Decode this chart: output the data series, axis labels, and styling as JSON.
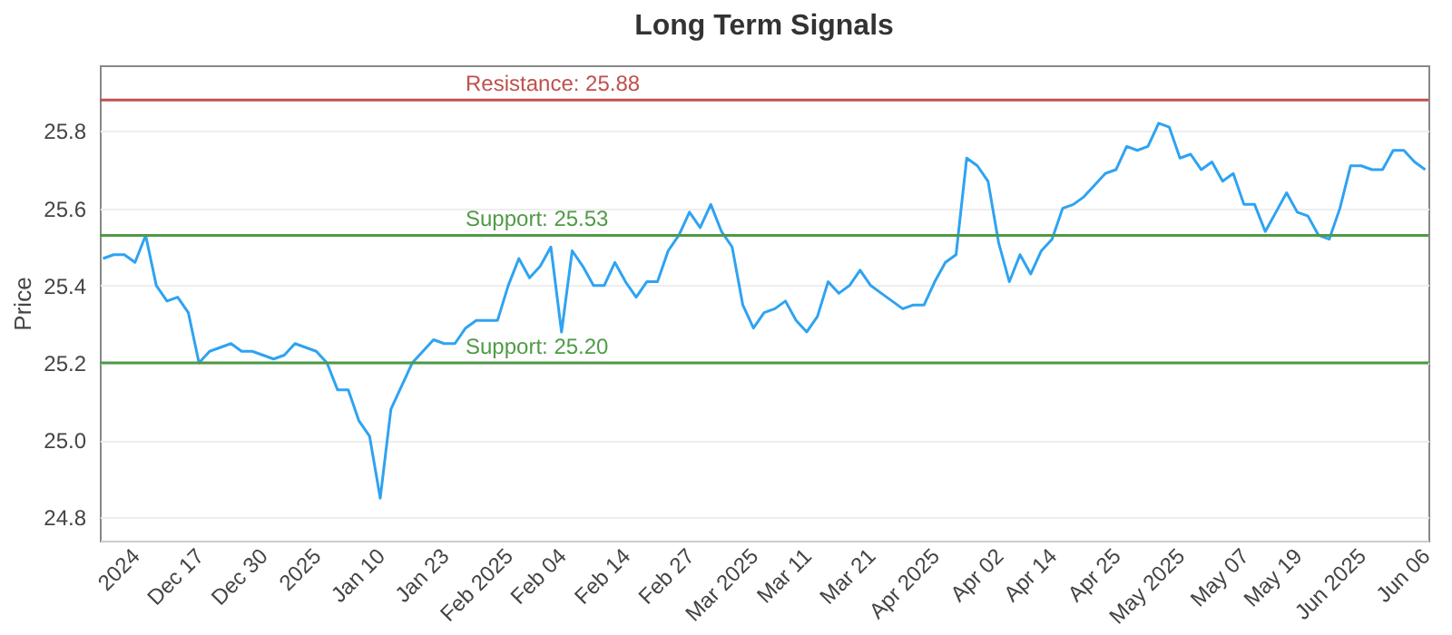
{
  "chart_data": {
    "type": "line",
    "title": "Long Term Signals",
    "ylabel": "Price",
    "categories": [
      null,
      null,
      null,
      "2024",
      null,
      null,
      null,
      null,
      null,
      "Dec 17",
      null,
      null,
      null,
      null,
      null,
      "Dec 30",
      null,
      null,
      null,
      null,
      "2025",
      null,
      null,
      null,
      null,
      null,
      "Jan 10",
      null,
      null,
      null,
      null,
      null,
      "Jan 23",
      null,
      null,
      null,
      null,
      null,
      "Feb 2025",
      null,
      null,
      null,
      null,
      "Feb 04",
      null,
      null,
      null,
      null,
      null,
      "Feb 14",
      null,
      null,
      null,
      null,
      null,
      "Feb 27",
      null,
      null,
      null,
      null,
      null,
      "Mar 2025",
      null,
      null,
      null,
      null,
      "Mar 11",
      null,
      null,
      null,
      null,
      null,
      "Mar 21",
      null,
      null,
      null,
      null,
      null,
      "Apr 2025",
      null,
      null,
      null,
      null,
      null,
      "Apr 02",
      null,
      null,
      null,
      null,
      "Apr 14",
      null,
      null,
      null,
      null,
      null,
      "Apr 25",
      null,
      null,
      null,
      null,
      null,
      "May 2025",
      null,
      null,
      null,
      null,
      null,
      "May 07",
      null,
      null,
      null,
      null,
      "May 19",
      null,
      null,
      null,
      null,
      null,
      "Jun 2025",
      null,
      null,
      null,
      null,
      null,
      "Jun 06"
    ],
    "series": [
      {
        "color": "#2ea3f2",
        "values": [
          25.47,
          25.48,
          25.48,
          25.46,
          25.53,
          25.4,
          25.36,
          25.37,
          25.33,
          25.2,
          25.23,
          25.24,
          25.25,
          25.23,
          25.23,
          25.22,
          25.21,
          25.22,
          25.25,
          25.24,
          25.23,
          25.2,
          25.13,
          25.13,
          25.05,
          25.01,
          24.85,
          25.08,
          25.14,
          25.2,
          25.23,
          25.26,
          25.25,
          25.25,
          25.29,
          25.31,
          25.31,
          25.31,
          25.4,
          25.47,
          25.42,
          25.45,
          25.5,
          25.28,
          25.49,
          25.45,
          25.4,
          25.4,
          25.46,
          25.41,
          25.37,
          25.41,
          25.41,
          25.49,
          25.53,
          25.59,
          25.55,
          25.61,
          25.54,
          25.5,
          25.35,
          25.29,
          25.33,
          25.34,
          25.36,
          25.31,
          25.28,
          25.32,
          25.41,
          25.38,
          25.4,
          25.44,
          25.4,
          25.38,
          25.36,
          25.34,
          25.35,
          25.35,
          25.41,
          25.46,
          25.48,
          25.73,
          25.71,
          25.67,
          25.51,
          25.41,
          25.48,
          25.43,
          25.49,
          25.52,
          25.6,
          25.61,
          25.63,
          25.66,
          25.69,
          25.7,
          25.76,
          25.75,
          25.76,
          25.82,
          25.81,
          25.73,
          25.74,
          25.7,
          25.72,
          25.67,
          25.69,
          25.61,
          25.61,
          25.54,
          25.59,
          25.64,
          25.59,
          25.58,
          25.53,
          25.52,
          25.6,
          25.71,
          25.71,
          25.7,
          25.7,
          25.75,
          25.75,
          25.72,
          25.7
        ]
      }
    ],
    "ylim": [
      24.74,
      25.97
    ],
    "yticks": [
      24.8,
      {
        "value": 25,
        "label": "25.0"
      },
      25.2,
      25.4,
      25.6,
      25.8
    ],
    "grid": "y",
    "marker": "none",
    "line_style": "solid",
    "ref_lines": [
      {
        "axis": "y",
        "value": 25.88,
        "label": "Resistance: 25.88",
        "color": "#c0504d"
      },
      {
        "axis": "y",
        "value": 25.53,
        "label": "Support: 25.53",
        "color": "#4f9a45"
      },
      {
        "axis": "y",
        "value": 25.2,
        "label": "Support: 25.20",
        "color": "#4f9a45"
      }
    ]
  }
}
